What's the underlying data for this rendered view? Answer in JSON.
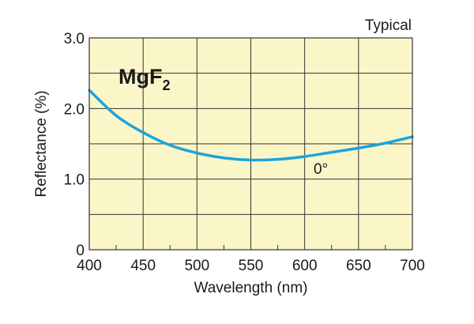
{
  "chart_data": {
    "type": "line",
    "title": "",
    "annotation_top_right": "Typical",
    "material_label": {
      "main": "MgF",
      "subscript": "2"
    },
    "xlabel": "Wavelength (nm)",
    "ylabel": "Reflectance (%)",
    "xlim": [
      400,
      700
    ],
    "ylim": [
      0,
      3.0
    ],
    "x_ticks": [
      400,
      450,
      500,
      550,
      600,
      650,
      700
    ],
    "x_tick_labels": [
      "400",
      "450",
      "500",
      "550",
      "600",
      "650",
      "700"
    ],
    "y_ticks": [
      0,
      1.0,
      2.0,
      3.0
    ],
    "y_tick_labels": [
      "0",
      "1.0",
      "2.0",
      "3.0"
    ],
    "grid": true,
    "colors": {
      "background": "#fbf6c8",
      "curve": "#1fa3dc",
      "grid": "#333333"
    },
    "series": [
      {
        "name": "0°",
        "x": [
          400,
          425,
          450,
          475,
          500,
          525,
          550,
          575,
          600,
          625,
          650,
          675,
          700
        ],
        "values": [
          2.26,
          1.9,
          1.66,
          1.48,
          1.37,
          1.3,
          1.27,
          1.28,
          1.32,
          1.38,
          1.44,
          1.51,
          1.6
        ]
      }
    ]
  }
}
